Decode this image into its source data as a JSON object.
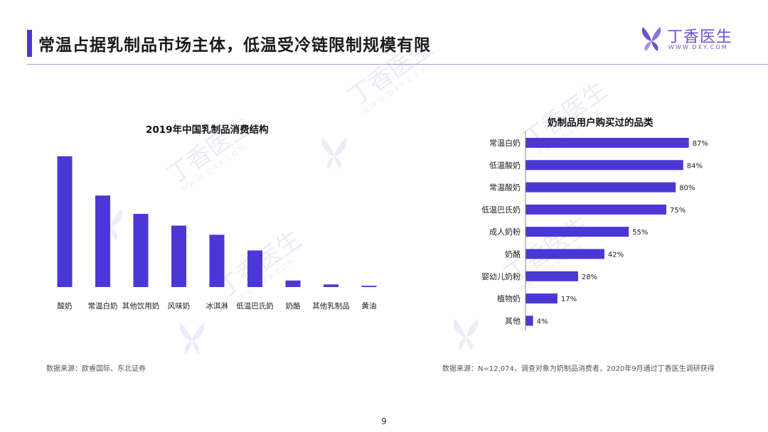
{
  "header": {
    "title": "常温占据乳制品市场主体，低温受冷链限制规模有限",
    "accent_color": "#4b37d6"
  },
  "logo": {
    "icon": "butterfly-flower-icon",
    "text": "丁香医生",
    "url": "WWW.DXY.COM",
    "color": "#6f52c9"
  },
  "watermark": {
    "text": "丁香医生",
    "url": "WWW.DXY.COM"
  },
  "chart_data": [
    {
      "type": "bar",
      "title": "2019年中国乳制品消费结构",
      "categories": [
        "酸奶",
        "常温白奶",
        "其他饮用奶",
        "风味奶",
        "冰淇淋",
        "低温巴氏奶",
        "奶酪",
        "其他乳制品",
        "黄油"
      ],
      "values": [
        100,
        70,
        56,
        47,
        40,
        28,
        5,
        2,
        1
      ],
      "ylim": [
        0,
        100
      ],
      "grid": false,
      "legend": "none",
      "bar_color": "#4b37d6"
    },
    {
      "type": "bar",
      "orientation": "horizontal",
      "title": "奶制品用户购买过的品类",
      "categories": [
        "常温白奶",
        "低温酸奶",
        "常温酸奶",
        "低温巴氏奶",
        "成人奶粉",
        "奶酪",
        "婴幼儿奶粉",
        "植物奶",
        "其他"
      ],
      "values": [
        87,
        84,
        80,
        75,
        55,
        42,
        28,
        17,
        4
      ],
      "value_labels": [
        "87%",
        "84%",
        "80%",
        "75%",
        "55%",
        "42%",
        "28%",
        "17%",
        "4%"
      ],
      "xlim": [
        0,
        100
      ],
      "grid": false,
      "legend": "none",
      "bar_color": "#4b37d6"
    }
  ],
  "sources": {
    "left": "数据来源：欧睿国际、东北证券",
    "right": "数据来源：N=12,074，调查对象为奶制品消费者，2020年9月通过丁香医生调研获得"
  },
  "page_number": "9"
}
